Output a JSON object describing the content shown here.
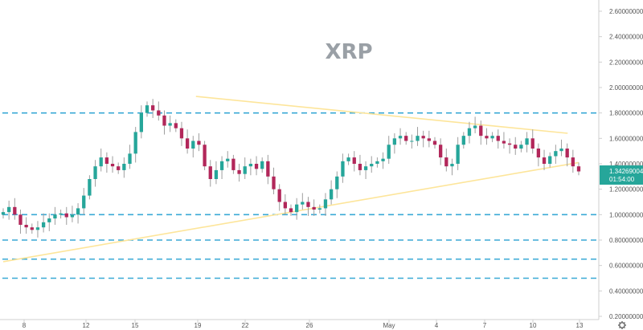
{
  "chart_data": {
    "type": "candlestick",
    "title": "XRP",
    "y_ticks": [
      "2.60000000",
      "2.40000000",
      "2.20000000",
      "2.00000000",
      "1.80000000",
      "1.60000000",
      "1.40000000",
      "1.20000000",
      "1.00000000",
      "0.80000000",
      "0.60000000",
      "0.40000000",
      "0.20000000"
    ],
    "y_tick_values": [
      2.6,
      2.4,
      2.2,
      2.0,
      1.8,
      1.6,
      1.4,
      1.2,
      1.0,
      0.8,
      0.6,
      0.4,
      0.2
    ],
    "x_ticks": [
      "8",
      "12",
      "15",
      "19",
      "22",
      "26",
      "May",
      "4",
      "7",
      "10",
      "13"
    ],
    "current_price": "1.34269004",
    "countdown": "01:54:00",
    "horizontal_levels": [
      1.8,
      1.0,
      0.8,
      0.65,
      0.5
    ],
    "trendline_upper": [
      [
        14.0,
        1.93
      ],
      [
        41.0,
        1.64
      ]
    ],
    "trendline_lower": [
      [
        0.0,
        0.63
      ],
      [
        41.8,
        1.41
      ]
    ],
    "candles_close": [
      1.02,
      1.06,
      1.0,
      0.92,
      0.9,
      0.88,
      0.9,
      0.94,
      0.97,
      1.0,
      1.01,
      0.98,
      1.0,
      1.05,
      1.15,
      1.28,
      1.38,
      1.45,
      1.4,
      1.38,
      1.35,
      1.4,
      1.48,
      1.65,
      1.8,
      1.86,
      1.82,
      1.78,
      1.7,
      1.72,
      1.68,
      1.6,
      1.52,
      1.58,
      1.55,
      1.38,
      1.28,
      1.35,
      1.42,
      1.44,
      1.35,
      1.32,
      1.38,
      1.4,
      1.36,
      1.42,
      1.3,
      1.2,
      1.1,
      1.05,
      1.02,
      1.08,
      1.1,
      1.06,
      1.04,
      1.05,
      1.12,
      1.2,
      1.3,
      1.42,
      1.45,
      1.4,
      1.35,
      1.38,
      1.4,
      1.42,
      1.44,
      1.55,
      1.6,
      1.62,
      1.58,
      1.58,
      1.62,
      1.6,
      1.58,
      1.55,
      1.45,
      1.38,
      1.4,
      1.55,
      1.62,
      1.68,
      1.7,
      1.62,
      1.6,
      1.62,
      1.58,
      1.56,
      1.55,
      1.52,
      1.55,
      1.6,
      1.52,
      1.45,
      1.4,
      1.46,
      1.5,
      1.52,
      1.45,
      1.38,
      1.34
    ],
    "candle_x_range": [
      0,
      41.8
    ],
    "ylim": [
      0.2,
      2.6
    ]
  },
  "colors": {
    "up": "#26a69a",
    "down": "#b2275a",
    "wick": "#9e9e9e",
    "levels": "#3aa9d6",
    "trendline": "#fde59a",
    "price_tag": "#26a69a",
    "axis_text": "#555555"
  },
  "icons": {
    "settings": "gear-icon"
  }
}
